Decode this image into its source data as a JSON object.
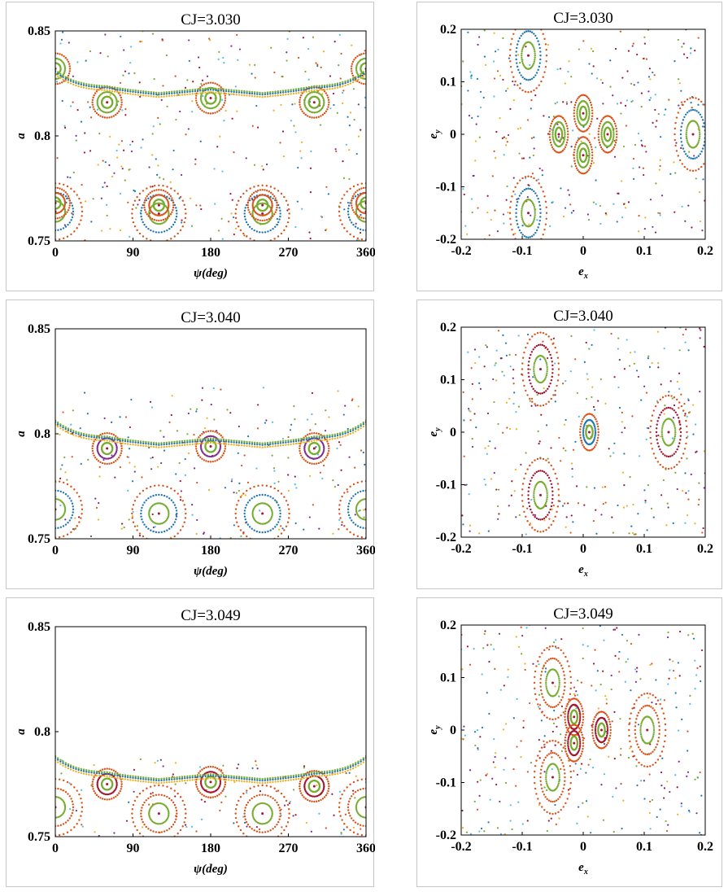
{
  "chart_data": [
    {
      "type": "scatter",
      "panel": "left",
      "title": "CJ=3.030",
      "xlabel": "ψ(deg)",
      "ylabel": "a",
      "xlim": [
        0,
        360
      ],
      "ylim": [
        0.75,
        0.85
      ],
      "xticks": [
        "0",
        "90",
        "180",
        "270",
        "360"
      ],
      "yticks": [
        "0.75",
        "0.8",
        "0.85"
      ],
      "series": [
        {
          "values": [
            {
              "x": 0,
              "y": 0.764
            },
            {
              "x": 120,
              "y": 0.763
            },
            {
              "x": 240,
              "y": 0.763
            },
            {
              "x": 360,
              "y": 0.764
            }
          ],
          "color": "#1f77b4"
        },
        {
          "values": [
            {
              "x": 0,
              "y": 0.768
            },
            {
              "x": 120,
              "y": 0.767
            },
            {
              "x": 240,
              "y": 0.767
            },
            {
              "x": 360,
              "y": 0.768
            }
          ],
          "color": "#d95319"
        },
        {
          "values": [
            {
              "x": 60,
              "y": 0.816
            },
            {
              "x": 180,
              "y": 0.818
            },
            {
              "x": 300,
              "y": 0.816
            },
            {
              "x": 0,
              "y": 0.832
            },
            {
              "x": 360,
              "y": 0.832
            }
          ],
          "color": "#77ac30"
        }
      ],
      "grid": false
    },
    {
      "type": "scatter",
      "panel": "right",
      "title": "CJ=3.030",
      "xlabel": "e_x",
      "ylabel": "e_y",
      "xlim": [
        -0.2,
        0.2
      ],
      "ylim": [
        -0.2,
        0.2
      ],
      "xticks": [
        "-0.2",
        "-0.1",
        "0",
        "0.1",
        "0.2"
      ],
      "yticks": [
        "-0.2",
        "-0.1",
        "0",
        "0.1",
        "0.2"
      ],
      "series": [
        {
          "values": [
            {
              "x": 0.18,
              "y": 0
            },
            {
              "x": -0.09,
              "y": 0.15
            },
            {
              "x": -0.09,
              "y": -0.15
            }
          ],
          "color": "#1f77b4"
        },
        {
          "values": [
            {
              "x": 0.04,
              "y": 0
            },
            {
              "x": -0.04,
              "y": 0
            },
            {
              "x": 0,
              "y": 0.04
            },
            {
              "x": 0,
              "y": -0.04
            }
          ],
          "color": "#77ac30"
        }
      ],
      "grid": false
    },
    {
      "type": "scatter",
      "panel": "left",
      "title": "CJ=3.040",
      "xlabel": "ψ(deg)",
      "ylabel": "a",
      "xlim": [
        0,
        360
      ],
      "ylim": [
        0.75,
        0.85
      ],
      "xticks": [
        "0",
        "90",
        "180",
        "270",
        "360"
      ],
      "yticks": [
        "0.75",
        "0.8",
        "0.85"
      ],
      "series": [
        {
          "values": [
            {
              "x": 0,
              "y": 0.764
            },
            {
              "x": 120,
              "y": 0.762
            },
            {
              "x": 240,
              "y": 0.762
            },
            {
              "x": 360,
              "y": 0.764
            }
          ],
          "color": "#1f77b4"
        },
        {
          "values": [
            {
              "x": 60,
              "y": 0.793
            },
            {
              "x": 180,
              "y": 0.794
            },
            {
              "x": 300,
              "y": 0.793
            }
          ],
          "color": "#7e2f8e"
        }
      ],
      "grid": false
    },
    {
      "type": "scatter",
      "panel": "right",
      "title": "CJ=3.040",
      "xlabel": "e_x",
      "ylabel": "e_y",
      "xlim": [
        -0.2,
        0.2
      ],
      "ylim": [
        -0.2,
        0.2
      ],
      "xticks": [
        "-0.2",
        "-0.1",
        "0",
        "0.1",
        "0.2"
      ],
      "yticks": [
        "-0.2",
        "-0.1",
        "0",
        "0.1",
        "0.2"
      ],
      "series": [
        {
          "values": [
            {
              "x": 0.14,
              "y": 0
            },
            {
              "x": -0.07,
              "y": 0.12
            },
            {
              "x": -0.07,
              "y": -0.12
            }
          ],
          "color": "#a2142f"
        },
        {
          "values": [
            {
              "x": 0.01,
              "y": 0
            }
          ],
          "color": "#1f77b4"
        }
      ],
      "grid": false
    },
    {
      "type": "scatter",
      "panel": "left",
      "title": "CJ=3.049",
      "xlabel": "ψ(deg)",
      "ylabel": "a",
      "xlim": [
        0,
        360
      ],
      "ylim": [
        0.75,
        0.85
      ],
      "xticks": [
        "0",
        "90",
        "180",
        "270",
        "360"
      ],
      "yticks": [
        "0.75",
        "0.8",
        "0.85"
      ],
      "series": [
        {
          "values": [
            {
              "x": 0,
              "y": 0.764
            },
            {
              "x": 120,
              "y": 0.761
            },
            {
              "x": 240,
              "y": 0.761
            },
            {
              "x": 360,
              "y": 0.764
            }
          ],
          "color": "#d95319"
        },
        {
          "values": [
            {
              "x": 60,
              "y": 0.775
            },
            {
              "x": 180,
              "y": 0.776
            },
            {
              "x": 300,
              "y": 0.774
            }
          ],
          "color": "#a2142f"
        }
      ],
      "grid": false
    },
    {
      "type": "scatter",
      "panel": "right",
      "title": "CJ=3.049",
      "xlabel": "e_x",
      "ylabel": "e_y",
      "xlim": [
        -0.2,
        0.2
      ],
      "ylim": [
        -0.2,
        0.2
      ],
      "xticks": [
        "-0.2",
        "-0.1",
        "0",
        "0.1",
        "0.2"
      ],
      "yticks": [
        "-0.2",
        "-0.1",
        "0",
        "0.1",
        "0.2"
      ],
      "series": [
        {
          "values": [
            {
              "x": 0.105,
              "y": 0
            },
            {
              "x": -0.05,
              "y": 0.09
            },
            {
              "x": -0.05,
              "y": -0.09
            }
          ],
          "color": "#d95319"
        },
        {
          "values": [
            {
              "x": 0.03,
              "y": 0
            },
            {
              "x": -0.015,
              "y": 0.025
            },
            {
              "x": -0.015,
              "y": -0.025
            }
          ],
          "color": "#a2142f"
        }
      ],
      "grid": false
    }
  ]
}
